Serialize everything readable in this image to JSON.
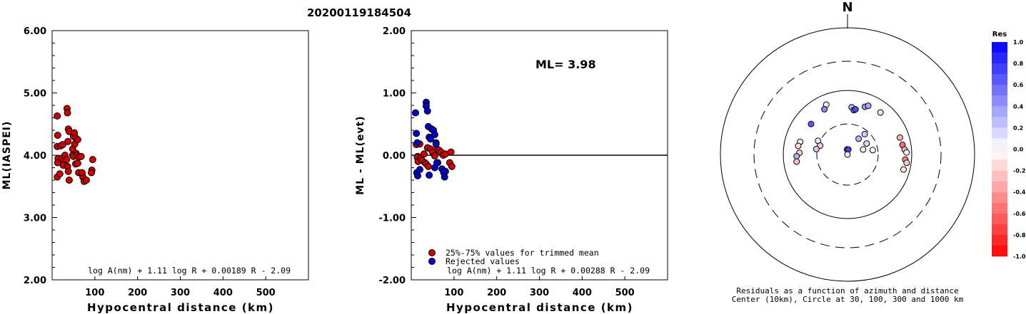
{
  "title": "20200119184504",
  "chart_data": [
    {
      "type": "scatter",
      "ylabel": "ML(IASPEI)",
      "xlabel": "Hypocentral distance (km)",
      "xlim": [
        0,
        600
      ],
      "ylim": [
        2.0,
        6.0
      ],
      "xticks": [
        "100",
        "200",
        "300",
        "400",
        "500"
      ],
      "yticks": [
        "2.00",
        "3.00",
        "4.00",
        "5.00",
        "6.00"
      ],
      "formula": "log A(nm) + 1.11 log R + 0.00189 R - 2.09",
      "series": [
        {
          "color": "#cc0000",
          "points": [
            [
              12,
              4.63
            ],
            [
              13,
              4.32
            ],
            [
              12,
              4.14
            ],
            [
              14,
              3.95
            ],
            [
              13,
              3.88
            ],
            [
              12,
              3.65
            ],
            [
              18,
              3.7
            ],
            [
              20,
              4.15
            ],
            [
              25,
              4.17
            ],
            [
              22,
              3.95
            ],
            [
              28,
              3.92
            ],
            [
              26,
              3.84
            ],
            [
              30,
              4.0
            ],
            [
              35,
              4.75
            ],
            [
              36,
              4.68
            ],
            [
              38,
              4.42
            ],
            [
              40,
              4.38
            ],
            [
              37,
              4.22
            ],
            [
              34,
              3.93
            ],
            [
              36,
              3.82
            ],
            [
              38,
              3.74
            ],
            [
              40,
              3.6
            ],
            [
              48,
              4.1
            ],
            [
              50,
              4.3
            ],
            [
              52,
              4.36
            ],
            [
              55,
              4.28
            ],
            [
              53,
              4.18
            ],
            [
              56,
              4.03
            ],
            [
              48,
              4.0
            ],
            [
              50,
              3.98
            ],
            [
              55,
              3.86
            ],
            [
              60,
              4.25
            ],
            [
              58,
              4.0
            ],
            [
              62,
              3.97
            ],
            [
              60,
              3.87
            ],
            [
              62,
              3.72
            ],
            [
              68,
              3.98
            ],
            [
              70,
              3.7
            ],
            [
              72,
              3.65
            ],
            [
              75,
              3.58
            ],
            [
              70,
              3.72
            ],
            [
              80,
              3.6
            ],
            [
              95,
              3.93
            ],
            [
              93,
              3.76
            ],
            [
              92,
              3.72
            ]
          ]
        }
      ]
    },
    {
      "type": "scatter",
      "ylabel": "ML - ML(evt)",
      "xlabel": "Hypocentral distance (km)",
      "xlim": [
        0,
        600
      ],
      "ylim": [
        -2.0,
        2.0
      ],
      "xticks": [
        "100",
        "200",
        "300",
        "400",
        "500"
      ],
      "yticks": [
        "-2.00",
        "-1.00",
        "0.00",
        "1.00",
        "2.00"
      ],
      "annotation": "ML= 3.98",
      "formula": "log A(nm) + 1.11 log R + 0.00288 R - 2.09",
      "legend": [
        "25%-75% values for trimmed mean",
        "Rejected values"
      ],
      "series": [
        {
          "name": "25%-75% values for trimmed mean",
          "color": "#cc0000",
          "points": [
            [
              12,
              0.17
            ],
            [
              15,
              -0.02
            ],
            [
              14,
              -0.03
            ],
            [
              16,
              -0.1
            ],
            [
              20,
              0.18
            ],
            [
              22,
              -0.04
            ],
            [
              25,
              -0.08
            ],
            [
              30,
              0.02
            ],
            [
              32,
              -0.12
            ],
            [
              35,
              -0.14
            ],
            [
              38,
              0.12
            ],
            [
              40,
              -0.18
            ],
            [
              45,
              0.1
            ],
            [
              50,
              0.05
            ],
            [
              55,
              -0.01
            ],
            [
              60,
              0.1
            ],
            [
              62,
              -0.12
            ],
            [
              65,
              0.08
            ],
            [
              70,
              0.05
            ],
            [
              75,
              0.0
            ],
            [
              80,
              0.02
            ],
            [
              90,
              -0.12
            ],
            [
              93,
              0.05
            ],
            [
              95,
              -0.18
            ]
          ]
        },
        {
          "name": "Rejected values",
          "color": "#0000cc",
          "points": [
            [
              10,
              0.68
            ],
            [
              12,
              0.35
            ],
            [
              14,
              0.2
            ],
            [
              13,
              -0.28
            ],
            [
              15,
              -0.33
            ],
            [
              20,
              -0.23
            ],
            [
              35,
              0.85
            ],
            [
              35,
              0.79
            ],
            [
              38,
              0.71
            ],
            [
              40,
              0.46
            ],
            [
              42,
              0.29
            ],
            [
              45,
              0.26
            ],
            [
              48,
              0.42
            ],
            [
              52,
              0.4
            ],
            [
              55,
              0.33
            ],
            [
              58,
              0.2
            ],
            [
              58,
              0.18
            ],
            [
              42,
              -0.32
            ],
            [
              55,
              -0.2
            ],
            [
              60,
              -0.12
            ],
            [
              72,
              -0.22
            ],
            [
              76,
              -0.28
            ],
            [
              80,
              -0.26
            ],
            [
              78,
              -0.35
            ]
          ]
        }
      ]
    },
    {
      "type": "polar-scatter",
      "north_label": "N",
      "caption_line1": "Residuals as a function of azimuth and distance",
      "caption_line2": "Center (10km), Circle at 30, 100, 300 and 1000 km",
      "colorbar_title": "Res",
      "colorbar_ticks": [
        "1.0",
        "0.8",
        "0.6",
        "0.4",
        "0.2",
        "0.0",
        "-0.2",
        "-0.4",
        "-0.6",
        "-0.8",
        "-1.0"
      ],
      "rings_km": [
        30,
        100,
        300,
        1000
      ],
      "points": [
        {
          "az": 337,
          "dist": 70,
          "res": 0.05
        },
        {
          "az": 333,
          "dist": 62,
          "res": 0.45
        },
        {
          "az": 5,
          "dist": 55,
          "res": 0.3
        },
        {
          "az": 8,
          "dist": 50,
          "res": 0.6
        },
        {
          "az": 10,
          "dist": 52,
          "res": 0.7
        },
        {
          "az": 20,
          "dist": 62,
          "res": 0.4
        },
        {
          "az": 23,
          "dist": 67,
          "res": 0.35
        },
        {
          "az": 38,
          "dist": 68,
          "res": 0.1
        },
        {
          "az": 310,
          "dist": 55,
          "res": 0.65
        },
        {
          "az": 285,
          "dist": 58,
          "res": 0.05
        },
        {
          "az": 280,
          "dist": 60,
          "res": -0.15
        },
        {
          "az": 272,
          "dist": 56,
          "res": -0.2
        },
        {
          "az": 268,
          "dist": 62,
          "res": 0.3
        },
        {
          "az": 262,
          "dist": 63,
          "res": -0.25
        },
        {
          "az": 295,
          "dist": 32,
          "res": 0.1
        },
        {
          "az": 288,
          "dist": 28,
          "res": -0.2
        },
        {
          "az": 280,
          "dist": 31,
          "res": 0.2
        },
        {
          "az": 35,
          "dist": 20,
          "res": 0.3
        },
        {
          "az": 40,
          "dist": 26,
          "res": 0.2
        },
        {
          "az": 355,
          "dist": 12,
          "res": 0.7
        },
        {
          "az": 10,
          "dist": 12,
          "res": 0.75
        },
        {
          "az": 0,
          "dist": 10,
          "res": 0.1
        },
        {
          "az": 60,
          "dist": 22,
          "res": 0.15
        },
        {
          "az": 72,
          "dist": 18,
          "res": 0.05
        },
        {
          "az": 80,
          "dist": 25,
          "res": 0.0
        },
        {
          "az": 72,
          "dist": 72,
          "res": -0.3
        },
        {
          "az": 80,
          "dist": 74,
          "res": -0.55
        },
        {
          "az": 85,
          "dist": 78,
          "res": -0.3
        },
        {
          "az": 88,
          "dist": 83,
          "res": -0.05
        },
        {
          "az": 95,
          "dist": 80,
          "res": -0.45
        },
        {
          "az": 98,
          "dist": 85,
          "res": -0.2
        },
        {
          "az": 105,
          "dist": 80,
          "res": -0.1
        }
      ]
    }
  ]
}
